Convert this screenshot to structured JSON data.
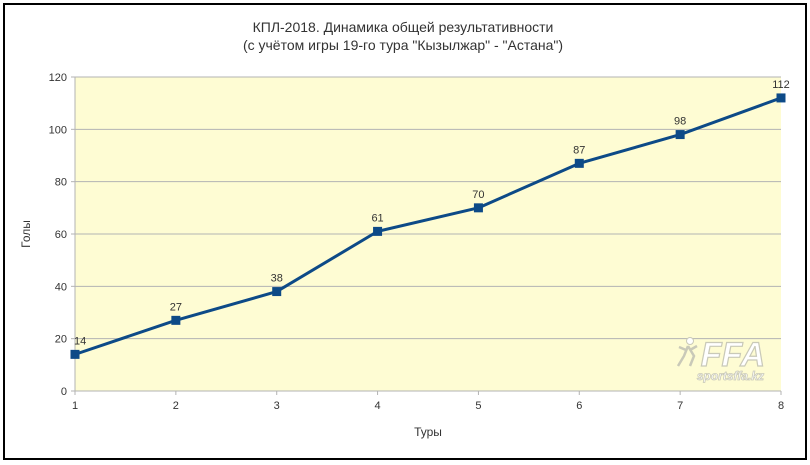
{
  "chart_data": {
    "type": "line",
    "title_line1": "КПЛ-2018. Динамика общей результативности",
    "title_line2": "(с учётом игры 19-го тура \"Кызылжар\" - \"Астана\")",
    "xlabel": "Туры",
    "ylabel": "Голы",
    "x": [
      1,
      2,
      3,
      4,
      5,
      6,
      7,
      8
    ],
    "series": [
      {
        "values": [
          14,
          27,
          38,
          61,
          70,
          87,
          98,
          112
        ]
      }
    ],
    "data_labels": [
      "14",
      "27",
      "38",
      "61",
      "70",
      "87",
      "98",
      "112"
    ],
    "x_ticks": [
      "1",
      "2",
      "3",
      "4",
      "5",
      "6",
      "7",
      "8"
    ],
    "y_ticks": [
      "0",
      "20",
      "40",
      "60",
      "80",
      "100",
      "120"
    ],
    "y_tick_values": [
      0,
      20,
      40,
      60,
      80,
      100,
      120
    ],
    "ylim": [
      0,
      120
    ],
    "xlim": [
      1,
      8
    ],
    "grid": true,
    "plot_background": "#fefcd3",
    "line_color": "#0d4a87",
    "grid_color": "#b3b3b3"
  },
  "watermark": {
    "logo_text": "FFA",
    "site_text": "sportsffa.kz"
  }
}
